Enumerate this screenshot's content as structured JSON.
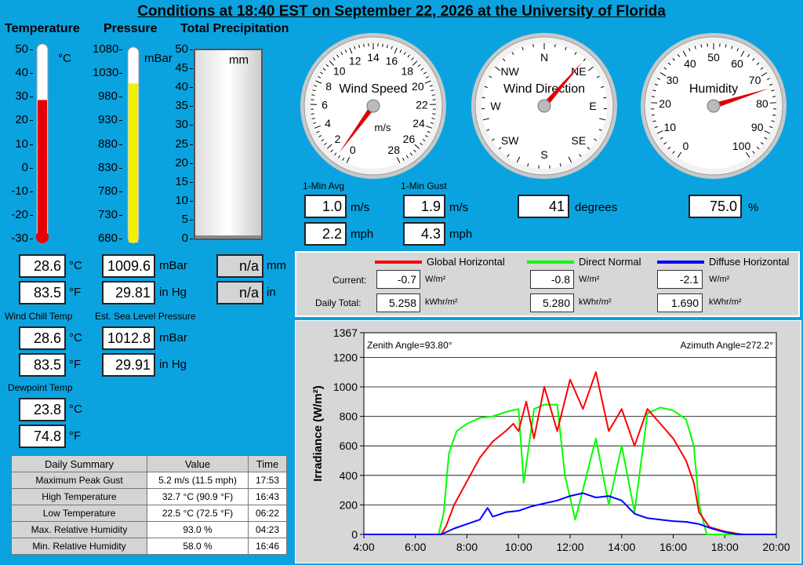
{
  "title": "Conditions at 18:40 EST on September 22, 2026 at the University of Florida",
  "headers": {
    "temperature": "Temperature",
    "pressure": "Pressure",
    "precip": "Total Precipitation"
  },
  "temperature": {
    "unit": "°C",
    "ticks": [
      "50",
      "40",
      "30",
      "20",
      "10",
      "0",
      "-10",
      "-20",
      "-30"
    ],
    "value": 28.6,
    "min": -30,
    "max": 50,
    "c": "28.6",
    "c_unit": "°C",
    "f": "83.5",
    "f_unit": "°F"
  },
  "pressure": {
    "unit": "mBar",
    "ticks": [
      "1080",
      "1030",
      "980",
      "930",
      "880",
      "830",
      "780",
      "730",
      "680"
    ],
    "value": 1009.6,
    "min": 680,
    "max": 1080,
    "mbar": "1009.6",
    "mbar_unit": "mBar",
    "inhg": "29.81",
    "inhg_unit": "in Hg"
  },
  "precip": {
    "unit": "mm",
    "ticks": [
      "50",
      "45",
      "40",
      "35",
      "30",
      "25",
      "20",
      "15",
      "10",
      "5",
      "0"
    ],
    "mm": "n/a",
    "mm_unit": "mm",
    "in": "n/a",
    "in_unit": "in"
  },
  "wind_chill": {
    "label": "Wind Chill Temp",
    "c": "28.6",
    "c_unit": "°C",
    "f": "83.5",
    "f_unit": "°F"
  },
  "sea_level": {
    "label": "Est. Sea Level Pressure",
    "mbar": "1012.8",
    "mbar_unit": "mBar",
    "inhg": "29.91",
    "inhg_unit": "in Hg"
  },
  "dewpoint": {
    "label": "Dewpoint Temp",
    "c": "23.8",
    "c_unit": "°C",
    "f": "74.8",
    "f_unit": "°F"
  },
  "wind_speed": {
    "title": "Wind Speed",
    "unit": "m/s",
    "ticks": [
      "0",
      "2",
      "4",
      "6",
      "8",
      "10",
      "12",
      "14",
      "16",
      "18",
      "20",
      "22",
      "24",
      "26",
      "28"
    ],
    "needle": 1.0,
    "avg_label": "1-Min Avg",
    "gust_label": "1-Min Gust",
    "avg_ms": "1.0",
    "avg_mph": "2.2",
    "gust_ms": "1.9",
    "gust_mph": "4.3",
    "ms_unit": "m/s",
    "mph_unit": "mph"
  },
  "wind_direction": {
    "title": "Wind Direction",
    "ticks": [
      "N",
      "NE",
      "E",
      "SE",
      "S",
      "SW",
      "W",
      "NW"
    ],
    "needle": 41,
    "value": "41",
    "unit": "degrees"
  },
  "humidity": {
    "title": "Humidity",
    "ticks": [
      "0",
      "10",
      "20",
      "30",
      "40",
      "50",
      "60",
      "70",
      "80",
      "90",
      "100"
    ],
    "needle": 75,
    "value": "75.0",
    "unit": "%"
  },
  "solar": {
    "legend": [
      {
        "name": "Global Horizontal",
        "color": "#ff0000"
      },
      {
        "name": "Direct Normal",
        "color": "#00ff00"
      },
      {
        "name": "Diffuse Horizontal",
        "color": "#0000ff"
      }
    ],
    "current_label": "Current:",
    "daily_label": "Daily Total:",
    "current": [
      "-0.7",
      "-0.8",
      "-2.1"
    ],
    "current_unit": "W/m²",
    "daily": [
      "5.258",
      "5.280",
      "1.690"
    ],
    "daily_unit": "kWhr/m²"
  },
  "daily_summary": {
    "headers": [
      "Daily Summary",
      "Value",
      "Time"
    ],
    "rows": [
      [
        "Maximum Peak Gust",
        "5.2 m/s (11.5 mph)",
        "17:53"
      ],
      [
        "High Temperature",
        "32.7 °C (90.9 °F)",
        "16:43"
      ],
      [
        "Low Temperature",
        "22.5 °C (72.5 °F)",
        "06:22"
      ],
      [
        "Max. Relative Humidity",
        "93.0 %",
        "04:23"
      ],
      [
        "Min. Relative Humidity",
        "58.0 %",
        "16:46"
      ]
    ]
  },
  "chart_data": {
    "type": "line",
    "ylabel": "Irradiance (W/m²)",
    "ylim": [
      0,
      1367
    ],
    "yticks": [
      "1367",
      "1200",
      "1000",
      "800",
      "600",
      "400",
      "200",
      "0"
    ],
    "xlim": [
      4,
      20
    ],
    "xticks": [
      "4:00",
      "6:00",
      "8:00",
      "10:00",
      "12:00",
      "14:00",
      "16:00",
      "18:00",
      "20:00"
    ],
    "annotations": [
      "Zenith Angle=93.80°",
      "Azimuth Angle=272.2°"
    ],
    "grid": true,
    "series": [
      {
        "name": "Global Horizontal",
        "color": "#ff0000",
        "x": [
          4,
          7,
          7.2,
          7.5,
          8,
          8.5,
          9,
          9.5,
          9.8,
          10,
          10.3,
          10.6,
          11,
          11.5,
          12,
          12.5,
          13,
          13.5,
          14,
          14.5,
          15,
          15.5,
          16,
          16.5,
          16.8,
          17,
          17.4,
          18,
          18.5,
          18.7,
          20
        ],
        "y": [
          0,
          0,
          60,
          200,
          360,
          520,
          630,
          700,
          750,
          700,
          900,
          650,
          1000,
          700,
          1050,
          850,
          1100,
          700,
          850,
          600,
          850,
          750,
          650,
          500,
          350,
          150,
          50,
          20,
          5,
          0,
          0
        ]
      },
      {
        "name": "Direct Normal",
        "color": "#00ff00",
        "x": [
          4,
          6.9,
          7.1,
          7.3,
          7.6,
          8,
          8.5,
          9,
          9.5,
          10,
          10.2,
          10.6,
          11,
          11.5,
          11.8,
          12.2,
          13,
          13.5,
          14,
          14.5,
          15,
          15.5,
          16,
          16.5,
          16.8,
          17,
          17.3,
          17.6,
          20
        ],
        "y": [
          0,
          0,
          150,
          550,
          700,
          750,
          790,
          800,
          830,
          850,
          350,
          850,
          880,
          880,
          400,
          100,
          650,
          200,
          600,
          150,
          820,
          860,
          840,
          780,
          600,
          200,
          0,
          0,
          0
        ]
      },
      {
        "name": "Diffuse Horizontal",
        "color": "#0000ff",
        "x": [
          4,
          7,
          7.5,
          8,
          8.5,
          8.8,
          9,
          9.5,
          10,
          10.5,
          11,
          11.5,
          12,
          12.5,
          13,
          13.5,
          14,
          14.5,
          15,
          15.5,
          16,
          16.5,
          17,
          17.5,
          18,
          18.5,
          20
        ],
        "y": [
          0,
          0,
          40,
          70,
          100,
          180,
          120,
          150,
          160,
          190,
          210,
          230,
          260,
          280,
          250,
          260,
          230,
          140,
          110,
          100,
          90,
          85,
          70,
          40,
          15,
          0,
          0
        ]
      }
    ]
  }
}
